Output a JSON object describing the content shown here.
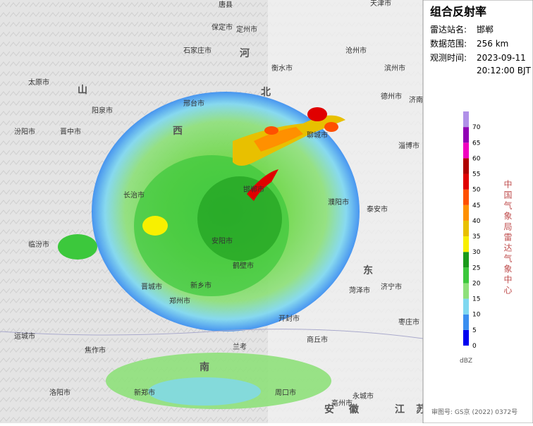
{
  "panel": {
    "title": "组合反射率",
    "station_label": "雷达站名:",
    "station": "邯郸",
    "range_label": "数据范围:",
    "range": "256 km",
    "time_label": "观测时间:",
    "date": "2023-09-11",
    "time": "20:12:00 BJT",
    "agency": "中国气象局雷达气象中心",
    "approval": "审图号: GS京 (2022) 0372号"
  },
  "colorbar": {
    "unit": "dBZ",
    "levels": [
      {
        "value": 0,
        "color": "#0000f0"
      },
      {
        "value": 5,
        "color": "#3a8ef0"
      },
      {
        "value": 10,
        "color": "#7fd8f0"
      },
      {
        "value": 15,
        "color": "#8ee07a"
      },
      {
        "value": 20,
        "color": "#3cc83c"
      },
      {
        "value": 25,
        "color": "#1a9a1a"
      },
      {
        "value": 30,
        "color": "#f8f000"
      },
      {
        "value": 35,
        "color": "#e8c000"
      },
      {
        "value": 40,
        "color": "#ff9000"
      },
      {
        "value": 45,
        "color": "#ff5000"
      },
      {
        "value": 50,
        "color": "#e00000"
      },
      {
        "value": 55,
        "color": "#b00000"
      },
      {
        "value": 60,
        "color": "#f000c0"
      },
      {
        "value": 65,
        "color": "#9000b4"
      },
      {
        "value": 70,
        "color": "#b090e8"
      }
    ]
  },
  "map": {
    "labels": [
      "唐县",
      "天津市",
      "保定市",
      "定州市",
      "石家庄市",
      "沧州市",
      "衡水市",
      "德州市",
      "邢台市",
      "邯郸市",
      "安阳市",
      "聊城市",
      "济南市",
      "鹤壁市",
      "新乡市",
      "濮阳市",
      "太原市",
      "晋中市",
      "长治市",
      "晋城市",
      "阳泉市",
      "焦作市",
      "郑州市",
      "开封市",
      "菏泽市",
      "济宁市",
      "泰安市",
      "淄博市",
      "滨州市",
      "汾阳市",
      "临汾市",
      "运城市",
      "兰考",
      "商丘市",
      "永城市",
      "亳州市",
      "周口市",
      "洛阳市",
      "新郑市",
      "枣庄市"
    ],
    "provinces": [
      "山",
      "西",
      "河",
      "北",
      "东",
      "南",
      "安",
      "徽",
      "江",
      "苏"
    ]
  }
}
